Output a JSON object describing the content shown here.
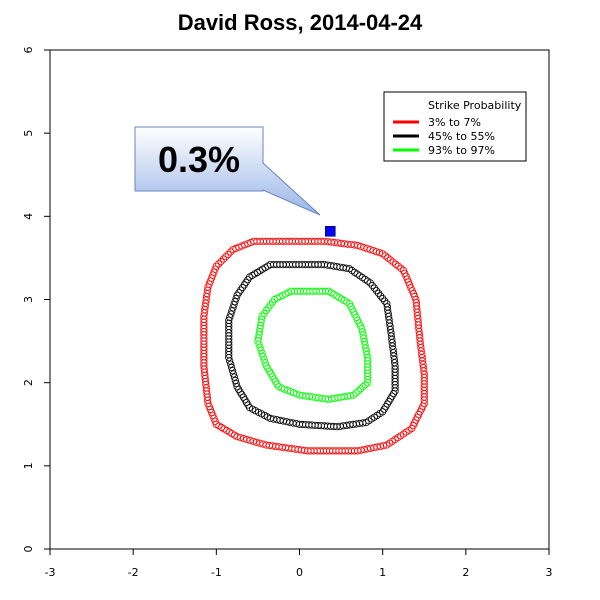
{
  "chart_data": {
    "type": "scatter",
    "title": "David Ross, 2014-04-24",
    "xlabel": "",
    "ylabel": "",
    "xlim": [
      -3,
      3
    ],
    "ylim": [
      0,
      6
    ],
    "xticks": [
      "-3",
      "-2",
      "-1",
      "0",
      "1",
      "2",
      "3"
    ],
    "yticks": [
      "0",
      "1",
      "2",
      "3",
      "4",
      "5",
      "6"
    ],
    "grid": false,
    "legend": {
      "title": "Strike Probability",
      "placement": "top-right",
      "entries": [
        {
          "label": "3% to 7%",
          "color": "#ff0000"
        },
        {
          "label": "45% to 55%",
          "color": "#000000"
        },
        {
          "label": "93% to 97%",
          "color": "#00ff00"
        }
      ]
    },
    "series": [
      {
        "name": "3% to 7%",
        "color": "#ff0000",
        "contour": [
          [
            -0.55,
            3.7
          ],
          [
            0.3,
            3.7
          ],
          [
            0.7,
            3.65
          ],
          [
            1.0,
            3.55
          ],
          [
            1.25,
            3.35
          ],
          [
            1.4,
            3.0
          ],
          [
            1.45,
            2.5
          ],
          [
            1.5,
            2.1
          ],
          [
            1.5,
            1.75
          ],
          [
            1.35,
            1.45
          ],
          [
            1.05,
            1.25
          ],
          [
            0.7,
            1.18
          ],
          [
            0.1,
            1.18
          ],
          [
            -0.4,
            1.25
          ],
          [
            -0.75,
            1.35
          ],
          [
            -1.0,
            1.5
          ],
          [
            -1.1,
            1.75
          ],
          [
            -1.15,
            2.2
          ],
          [
            -1.15,
            2.8
          ],
          [
            -1.1,
            3.15
          ],
          [
            -1.0,
            3.4
          ],
          [
            -0.8,
            3.6
          ]
        ]
      },
      {
        "name": "45% to 55%",
        "color": "#000000",
        "contour": [
          [
            -0.35,
            3.42
          ],
          [
            0.3,
            3.42
          ],
          [
            0.6,
            3.37
          ],
          [
            0.85,
            3.2
          ],
          [
            1.05,
            2.95
          ],
          [
            1.1,
            2.6
          ],
          [
            1.15,
            2.2
          ],
          [
            1.15,
            1.9
          ],
          [
            1.0,
            1.65
          ],
          [
            0.8,
            1.52
          ],
          [
            0.45,
            1.47
          ],
          [
            0.0,
            1.5
          ],
          [
            -0.35,
            1.57
          ],
          [
            -0.6,
            1.7
          ],
          [
            -0.75,
            1.95
          ],
          [
            -0.85,
            2.3
          ],
          [
            -0.85,
            2.75
          ],
          [
            -0.75,
            3.05
          ],
          [
            -0.6,
            3.27
          ]
        ]
      },
      {
        "name": "93% to 97%",
        "color": "#00ff00",
        "contour": [
          [
            -0.1,
            3.1
          ],
          [
            0.35,
            3.1
          ],
          [
            0.6,
            2.95
          ],
          [
            0.75,
            2.65
          ],
          [
            0.82,
            2.3
          ],
          [
            0.82,
            2.0
          ],
          [
            0.65,
            1.85
          ],
          [
            0.35,
            1.8
          ],
          [
            0.0,
            1.85
          ],
          [
            -0.25,
            1.95
          ],
          [
            -0.4,
            2.2
          ],
          [
            -0.5,
            2.5
          ],
          [
            -0.45,
            2.8
          ],
          [
            -0.3,
            3.0
          ]
        ]
      }
    ],
    "pitch": {
      "x": 0.37,
      "y": 3.82,
      "color": "#0000ff"
    },
    "annotation": {
      "label": "0.3%"
    }
  }
}
